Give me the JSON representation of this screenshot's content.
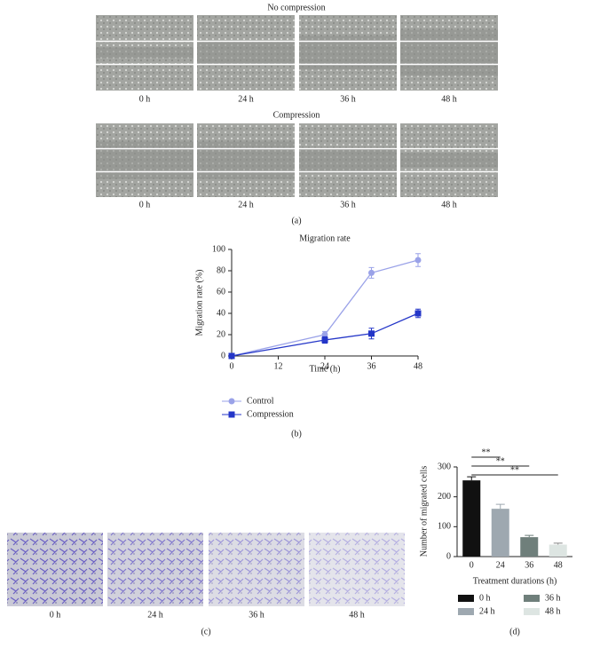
{
  "panel_a": {
    "rows": [
      {
        "title": "No compression",
        "labels": [
          "0 h",
          "24 h",
          "36 h",
          "48 h"
        ]
      },
      {
        "title": "Compression",
        "labels": [
          "0 h",
          "24 h",
          "36 h",
          "48 h"
        ]
      }
    ],
    "caption": "(a)"
  },
  "panel_b": {
    "caption": "(b)"
  },
  "panel_c": {
    "labels": [
      "0 h",
      "24 h",
      "36 h",
      "48 h"
    ],
    "caption": "(c)"
  },
  "panel_d": {
    "caption": "(d)"
  },
  "chart_data": [
    {
      "type": "line",
      "title": "Migration rate",
      "x_label": "Time (h)",
      "y_label": "Migration rate (%)",
      "x": [
        0,
        24,
        36,
        48
      ],
      "xlim": [
        0,
        48
      ],
      "xticks": [
        0,
        12,
        24,
        36,
        48
      ],
      "ylim": [
        0,
        100
      ],
      "yticks": [
        0,
        20,
        40,
        60,
        80,
        100
      ],
      "series": [
        {
          "name": "Control",
          "color": "#9aa2e8",
          "marker": "circle",
          "values": [
            0,
            20,
            78,
            90
          ],
          "errors": [
            0,
            3,
            5,
            6
          ]
        },
        {
          "name": "Compression",
          "color": "#2436c8",
          "marker": "square",
          "values": [
            0,
            15,
            21,
            40
          ],
          "errors": [
            0,
            3,
            5,
            4
          ]
        }
      ]
    },
    {
      "type": "bar",
      "x_label": "Treatment durations (h)",
      "y_label": "Number of migrated cells",
      "categories": [
        "0",
        "24",
        "36",
        "48"
      ],
      "values": [
        255,
        160,
        65,
        40
      ],
      "errors": [
        12,
        15,
        6,
        5
      ],
      "colors": [
        "#111111",
        "#9ea8b0",
        "#6f7f7b",
        "#dde5e2"
      ],
      "legend": [
        "0 h",
        "24 h",
        "36 h",
        "48 h"
      ],
      "ylim": [
        0,
        300
      ],
      "yticks": [
        0,
        100,
        200,
        300
      ],
      "annotations": [
        "**",
        "**",
        "**"
      ]
    }
  ]
}
